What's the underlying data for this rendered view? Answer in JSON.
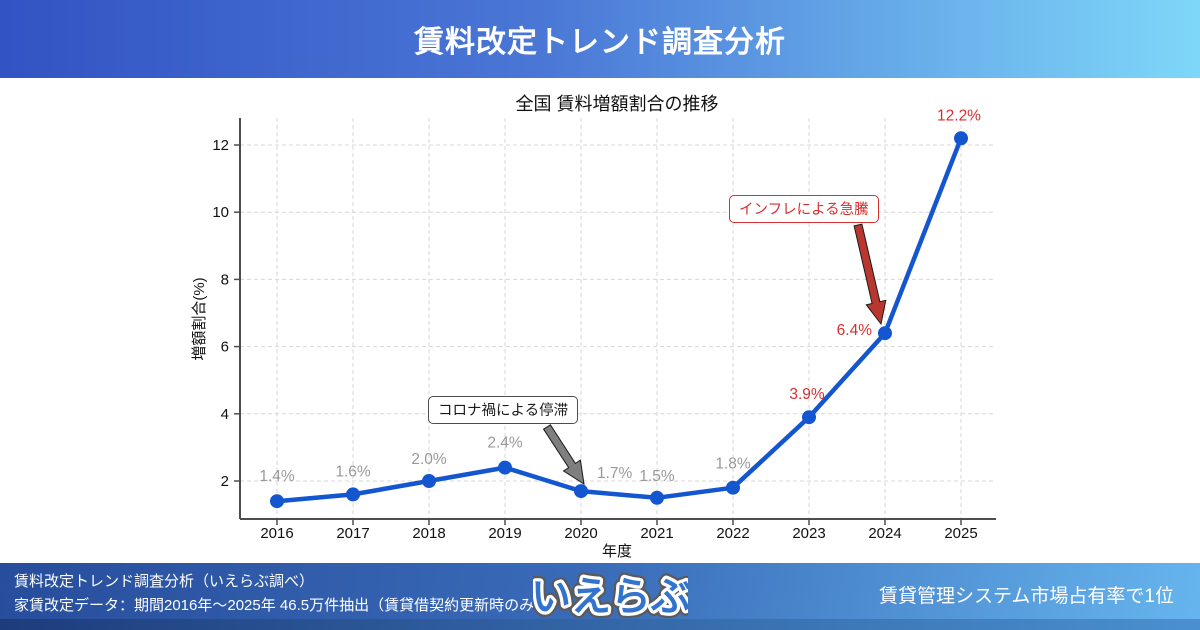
{
  "header": {
    "title": "賃料改定トレンド調査分析"
  },
  "chart_data": {
    "type": "line",
    "title": "全国 賃料増額割合の推移",
    "xlabel": "年度",
    "ylabel": "増額割合(%)",
    "categories": [
      "2016",
      "2017",
      "2018",
      "2019",
      "2020",
      "2021",
      "2022",
      "2023",
      "2024",
      "2025"
    ],
    "series": [
      {
        "name": "増額割合",
        "values": [
          1.4,
          1.6,
          2.0,
          2.4,
          1.7,
          1.5,
          1.8,
          3.9,
          6.4,
          12.2
        ]
      }
    ],
    "point_labels": [
      "1.4%",
      "1.6%",
      "2.0%",
      "2.4%",
      "1.7%",
      "1.5%",
      "1.8%",
      "3.9%",
      "6.4%",
      "12.2%"
    ],
    "point_label_styles": [
      "gray",
      "gray",
      "gray",
      "gray",
      "gray",
      "gray",
      "gray",
      "red",
      "red",
      "red"
    ],
    "yticks": [
      2,
      4,
      6,
      8,
      10,
      12
    ],
    "ylim": [
      0.8,
      12.75
    ],
    "grid": true,
    "legend": "none",
    "colors": {
      "line": "#1456cf",
      "grid": "#d7d7d7",
      "axis": "#4d4d4d",
      "tick_label": "#111111",
      "gray_label": "#999999",
      "red_label": "#d62f2f"
    },
    "annotations": [
      {
        "text": "コロナ禍による停滞",
        "target": "2020",
        "text_color": "#1a1a1a",
        "border_color": "#4d4d4d",
        "arrow_fill": "#7f7f7f"
      },
      {
        "text": "インフレによる急騰",
        "target": "2024",
        "text_color": "#d62f2f",
        "border_color": "#d62f2f",
        "arrow_fill": "#b8372e"
      }
    ]
  },
  "footer": {
    "line1": "賃料改定トレンド調査分析（いえらぶ調べ）",
    "line2": "家賃改定データ：期間2016年〜2025年 46.5万件抽出（賃貸借契約更新時のみ）",
    "logo_text": "いえらぶ",
    "right_note": "賃貸管理システム市場占有率で1位"
  }
}
